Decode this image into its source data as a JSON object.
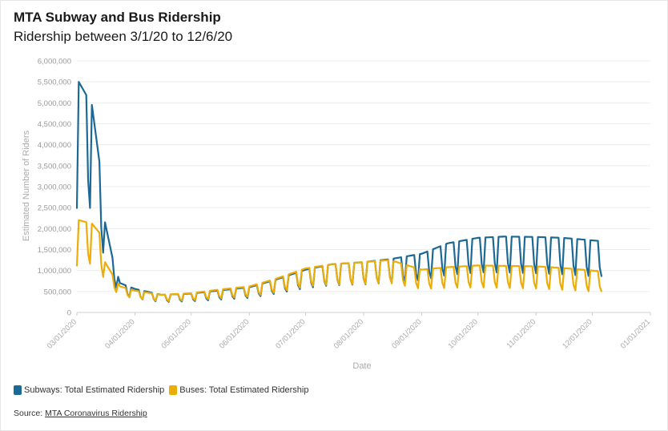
{
  "title": "MTA Subway and Bus Ridership",
  "subtitle": "Ridership between 3/1/20 to 12/6/20",
  "legend": [
    {
      "label": "Subways: Total Estimated Ridership",
      "color": "#1d6996"
    },
    {
      "label": "Buses: Total Estimated Ridership",
      "color": "#edad08"
    }
  ],
  "source": {
    "prefix": "Source:",
    "link_text": "MTA Coronavirus Ridership"
  },
  "chart_data": {
    "type": "line",
    "xlabel": "Date",
    "ylabel": "Estimated Number of Riders",
    "xlim": [
      "2020-03-01",
      "2021-01-01"
    ],
    "ylim": [
      0,
      6000000
    ],
    "y_ticks": [
      "0",
      "500,000",
      "1,000,000",
      "1,500,000",
      "2,000,000",
      "2,500,000",
      "3,000,000",
      "3,500,000",
      "4,000,000",
      "4,500,000",
      "5,000,000",
      "5,500,000",
      "6,000,000"
    ],
    "x_ticks": [
      "03/01/2020",
      "04/01/2020",
      "05/01/2020",
      "06/01/2020",
      "07/01/2020",
      "08/01/2020",
      "09/01/2020",
      "10/01/2020",
      "11/01/2020",
      "12/01/2020",
      "01/01/2021"
    ],
    "grid": true,
    "legend_position": "bottom-left",
    "date_start": "2020-03-01",
    "date_end": "2020-12-06",
    "series": [
      {
        "name": "Subways: Total Estimated Ridership",
        "color": "#1d6996",
        "weekday_anchors": [
          {
            "date": "2020-03-02",
            "value": 5500000
          },
          {
            "date": "2020-03-09",
            "value": 4950000
          },
          {
            "date": "2020-03-13",
            "value": 3600000
          },
          {
            "date": "2020-03-16",
            "value": 2150000
          },
          {
            "date": "2020-03-20",
            "value": 1300000
          },
          {
            "date": "2020-03-24",
            "value": 700000
          },
          {
            "date": "2020-04-01",
            "value": 560000
          },
          {
            "date": "2020-04-15",
            "value": 420000
          },
          {
            "date": "2020-05-01",
            "value": 450000
          },
          {
            "date": "2020-05-15",
            "value": 520000
          },
          {
            "date": "2020-06-01",
            "value": 600000
          },
          {
            "date": "2020-06-15",
            "value": 780000
          },
          {
            "date": "2020-07-01",
            "value": 1020000
          },
          {
            "date": "2020-07-15",
            "value": 1150000
          },
          {
            "date": "2020-08-01",
            "value": 1200000
          },
          {
            "date": "2020-08-15",
            "value": 1270000
          },
          {
            "date": "2020-09-01",
            "value": 1400000
          },
          {
            "date": "2020-09-15",
            "value": 1650000
          },
          {
            "date": "2020-10-01",
            "value": 1780000
          },
          {
            "date": "2020-10-15",
            "value": 1810000
          },
          {
            "date": "2020-11-01",
            "value": 1800000
          },
          {
            "date": "2020-11-15",
            "value": 1780000
          },
          {
            "date": "2020-12-06",
            "value": 1700000
          }
        ],
        "weekend_ratio": [
          {
            "date": "2020-03-01",
            "value": 0.45
          },
          {
            "date": "2020-03-24",
            "value": 0.6
          },
          {
            "date": "2020-09-01",
            "value": 0.55
          },
          {
            "date": "2020-12-06",
            "value": 0.5
          }
        ]
      },
      {
        "name": "Buses: Total Estimated Ridership",
        "color": "#edad08",
        "weekday_anchors": [
          {
            "date": "2020-03-02",
            "value": 2200000
          },
          {
            "date": "2020-03-09",
            "value": 2120000
          },
          {
            "date": "2020-03-13",
            "value": 1900000
          },
          {
            "date": "2020-03-16",
            "value": 1200000
          },
          {
            "date": "2020-03-20",
            "value": 900000
          },
          {
            "date": "2020-03-24",
            "value": 620000
          },
          {
            "date": "2020-04-01",
            "value": 520000
          },
          {
            "date": "2020-04-15",
            "value": 420000
          },
          {
            "date": "2020-05-01",
            "value": 460000
          },
          {
            "date": "2020-05-15",
            "value": 540000
          },
          {
            "date": "2020-06-01",
            "value": 620000
          },
          {
            "date": "2020-06-15",
            "value": 800000
          },
          {
            "date": "2020-07-01",
            "value": 1050000
          },
          {
            "date": "2020-07-15",
            "value": 1150000
          },
          {
            "date": "2020-08-01",
            "value": 1200000
          },
          {
            "date": "2020-08-15",
            "value": 1250000
          },
          {
            "date": "2020-09-01",
            "value": 1020000
          },
          {
            "date": "2020-09-15",
            "value": 1080000
          },
          {
            "date": "2020-10-01",
            "value": 1120000
          },
          {
            "date": "2020-11-01",
            "value": 1100000
          },
          {
            "date": "2020-11-15",
            "value": 1060000
          },
          {
            "date": "2020-12-06",
            "value": 980000
          }
        ],
        "weekend_ratio": [
          {
            "date": "2020-03-01",
            "value": 0.5
          },
          {
            "date": "2020-03-24",
            "value": 0.65
          },
          {
            "date": "2020-09-01",
            "value": 0.55
          },
          {
            "date": "2020-12-06",
            "value": 0.5
          }
        ]
      }
    ]
  }
}
